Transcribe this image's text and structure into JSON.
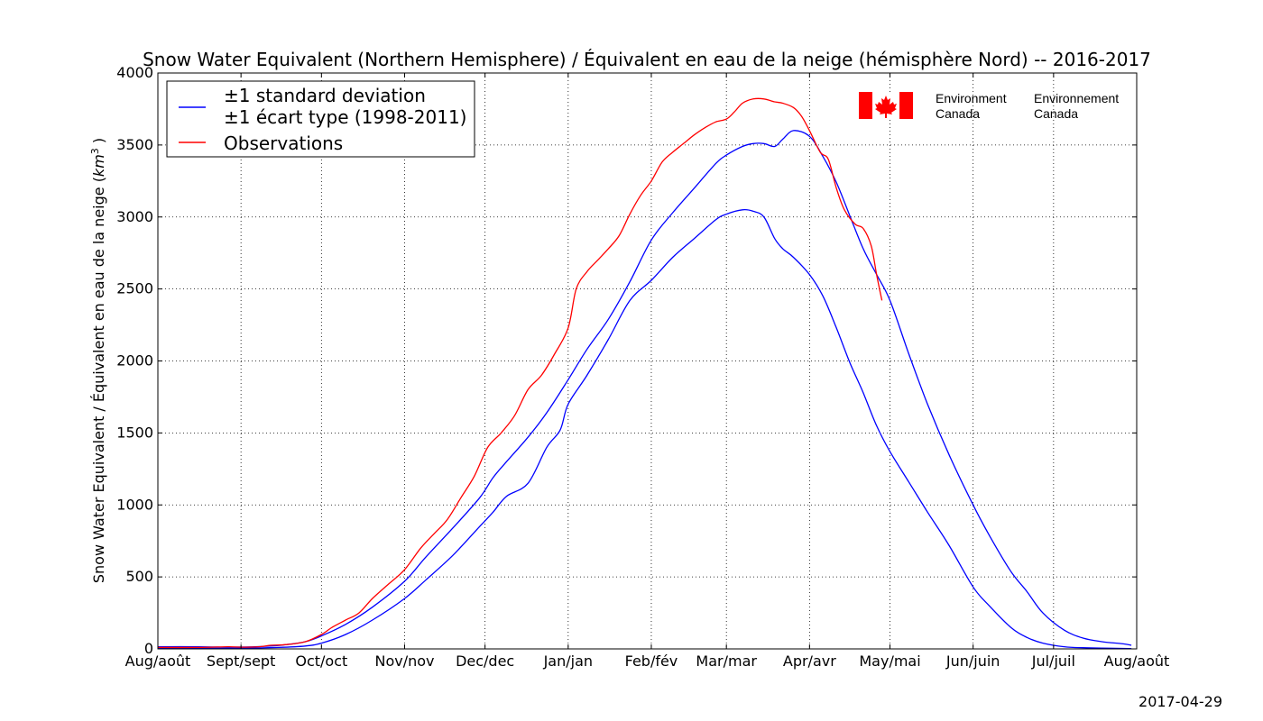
{
  "chart_data": {
    "type": "line",
    "title": "Snow Water Equivalent (Northern Hemisphere) / Équivalent en eau de la neige (hémisphère Nord) -- 2016-2017",
    "xlabel": "",
    "ylabel": "Snow Water Equivalent / Équivalent en eau de la neige (km³ )",
    "ylabel_main": "Snow Water Equivalent / Équivalent en eau de la neige (",
    "ylabel_unit": "km",
    "ylabel_exp": "3",
    "ylabel_close": " )",
    "ylim": [
      0,
      4000
    ],
    "xlim": [
      0,
      365
    ],
    "grid": true,
    "legend_position": "top-left",
    "x_ticks": [
      {
        "x": 0,
        "label": "Aug/août"
      },
      {
        "x": 31,
        "label": "Sept/sept"
      },
      {
        "x": 61,
        "label": "Oct/oct"
      },
      {
        "x": 92,
        "label": "Nov/nov"
      },
      {
        "x": 122,
        "label": "Dec/dec"
      },
      {
        "x": 153,
        "label": "Jan/jan"
      },
      {
        "x": 184,
        "label": "Feb/fév"
      },
      {
        "x": 212,
        "label": "Mar/mar"
      },
      {
        "x": 243,
        "label": "Apr/avr"
      },
      {
        "x": 273,
        "label": "May/mai"
      },
      {
        "x": 304,
        "label": "Jun/juin"
      },
      {
        "x": 334,
        "label": "Jul/juil"
      },
      {
        "x": 365,
        "label": "Aug/août"
      }
    ],
    "y_ticks": [
      0,
      500,
      1000,
      1500,
      2000,
      2500,
      3000,
      3500,
      4000
    ],
    "legend": [
      {
        "label_line1": "±1 standard deviation",
        "label_line2": "±1 écart type (1998-2011)",
        "color": "#0000ff"
      },
      {
        "label_line1": "Observations",
        "color": "#ff0000"
      }
    ],
    "series": [
      {
        "name": "upper std (+1 sd)",
        "color": "#0000ff",
        "x": [
          0,
          15,
          26,
          31,
          40,
          48,
          55,
          61,
          70,
          80,
          92,
          100,
          110,
          120,
          125,
          130,
          138,
          145,
          153,
          160,
          168,
          176,
          184,
          192,
          200,
          208,
          212,
          218,
          222,
          226,
          230,
          233,
          237,
          243,
          248,
          253,
          258,
          263,
          268,
          273,
          280,
          287,
          295,
          304,
          310,
          318,
          324,
          330,
          338,
          345,
          352,
          360,
          363
        ],
        "values": [
          15,
          15,
          12,
          13,
          18,
          30,
          50,
          90,
          170,
          290,
          470,
          640,
          840,
          1050,
          1190,
          1300,
          1470,
          1640,
          1870,
          2080,
          2290,
          2550,
          2840,
          3030,
          3200,
          3370,
          3430,
          3490,
          3510,
          3510,
          3490,
          3540,
          3600,
          3560,
          3420,
          3240,
          3010,
          2780,
          2600,
          2420,
          2050,
          1700,
          1350,
          1000,
          790,
          540,
          400,
          250,
          130,
          75,
          50,
          35,
          25
        ]
      },
      {
        "name": "lower std (-1 sd)",
        "color": "#0000ff",
        "x": [
          0,
          15,
          31,
          45,
          55,
          61,
          70,
          80,
          92,
          100,
          110,
          120,
          125,
          130,
          138,
          145,
          150,
          153,
          160,
          168,
          176,
          184,
          192,
          200,
          208,
          212,
          218,
          222,
          226,
          230,
          233,
          237,
          243,
          248,
          253,
          258,
          263,
          268,
          273,
          280,
          287,
          295,
          304,
          310,
          318,
          324,
          330,
          338,
          345,
          352,
          360,
          363
        ],
        "values": [
          5,
          5,
          5,
          10,
          20,
          40,
          100,
          200,
          350,
          480,
          650,
          850,
          950,
          1060,
          1150,
          1400,
          1520,
          1700,
          1900,
          2150,
          2420,
          2560,
          2720,
          2850,
          2980,
          3020,
          3050,
          3040,
          3000,
          2850,
          2780,
          2720,
          2600,
          2450,
          2230,
          1990,
          1780,
          1550,
          1370,
          1160,
          950,
          720,
          430,
          300,
          150,
          80,
          40,
          15,
          8,
          5,
          3,
          2
        ]
      },
      {
        "name": "Observations",
        "color": "#ff0000",
        "x": [
          0,
          15,
          26,
          31,
          38,
          42,
          48,
          55,
          61,
          65,
          70,
          75,
          80,
          86,
          92,
          98,
          103,
          108,
          113,
          118,
          123,
          128,
          133,
          138,
          143,
          148,
          153,
          156,
          160,
          164,
          168,
          172,
          176,
          180,
          184,
          188,
          192,
          196,
          200,
          204,
          208,
          212,
          215,
          218,
          222,
          226,
          230,
          233,
          237,
          240,
          243,
          247,
          250,
          253,
          256,
          260,
          263,
          266,
          268,
          270
        ],
        "values": [
          10,
          10,
          15,
          12,
          15,
          25,
          30,
          50,
          100,
          150,
          200,
          250,
          350,
          450,
          550,
          700,
          800,
          900,
          1050,
          1200,
          1400,
          1500,
          1620,
          1800,
          1900,
          2050,
          2230,
          2500,
          2620,
          2700,
          2780,
          2870,
          3020,
          3150,
          3250,
          3380,
          3450,
          3510,
          3570,
          3620,
          3660,
          3680,
          3730,
          3790,
          3820,
          3820,
          3800,
          3790,
          3760,
          3700,
          3600,
          3450,
          3400,
          3200,
          3050,
          2950,
          2920,
          2800,
          2600,
          2420
        ]
      }
    ]
  },
  "footer": {
    "date": "2017-04-29"
  },
  "logo": {
    "en_line1": "Environment",
    "en_line2": "Canada",
    "fr_line1": "Environnement",
    "fr_line2": "Canada"
  }
}
